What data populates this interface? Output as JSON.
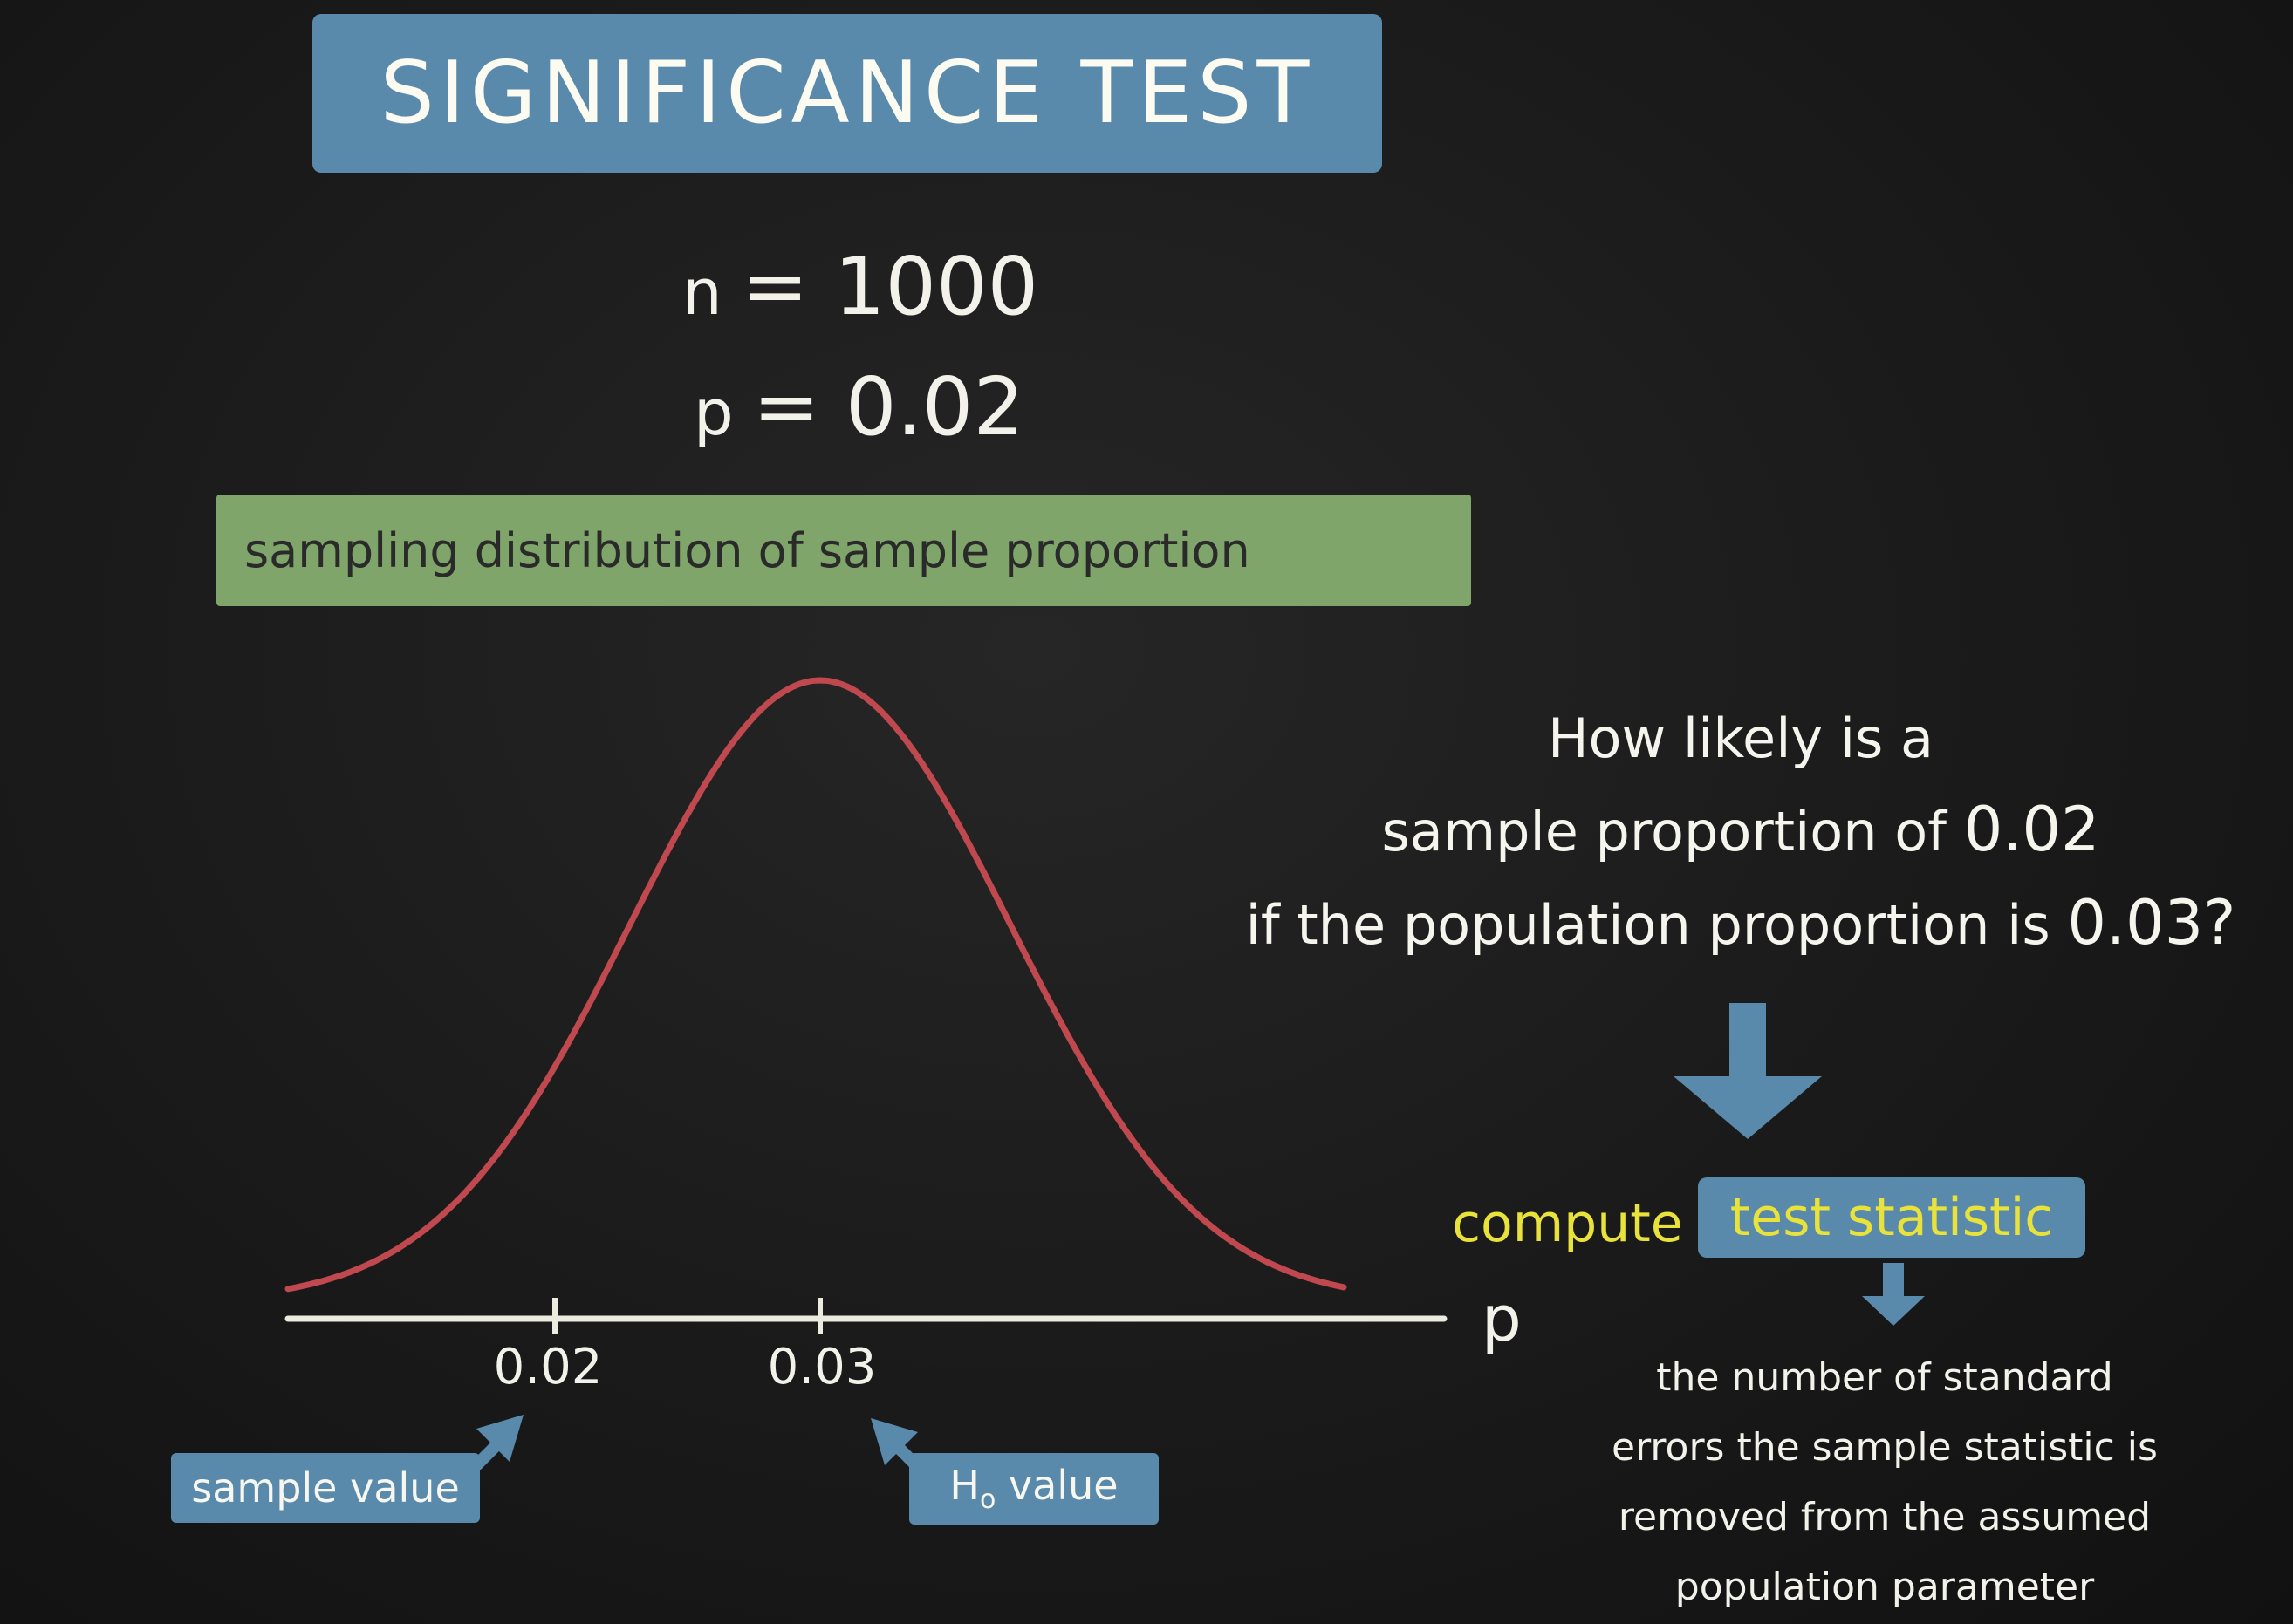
{
  "title": "SIGNIFICANCE TEST",
  "params": {
    "n_symbol": "n",
    "n_value": "= 1000",
    "p_symbol": "p",
    "p_value": "= 0.02"
  },
  "distribution_label": "sampling distribution of sample proportion",
  "chart_data": {
    "type": "line",
    "curve": "normal",
    "mean": 0.03,
    "x_ticks": [
      "0.02",
      "0.03"
    ],
    "x_axis_label": "p",
    "annotations": [
      {
        "text": "sample value",
        "points_to": "0.02"
      },
      {
        "text_main": "H",
        "text_sub": "o",
        "text_rest": " value",
        "points_to": "0.03"
      }
    ]
  },
  "question": {
    "line1": "How likely is a",
    "line2_text": "sample proportion of ",
    "line2_num": "0.02",
    "line3_text": "if the population proportion is ",
    "line3_num": "0.03?"
  },
  "compute": {
    "prefix": "compute",
    "highlight": "test statistic"
  },
  "explanation": {
    "line1": "the number of standard",
    "line2": "errors the sample statistic is",
    "line3": "removed from the assumed",
    "line4": "population parameter"
  },
  "colors": {
    "background": "#1a1a1a",
    "title_box": "#5a8aab",
    "label_green": "#7fa56b",
    "curve": "#c0484f",
    "highlight_text": "#e8e23a",
    "arrow": "#5a8aab"
  }
}
